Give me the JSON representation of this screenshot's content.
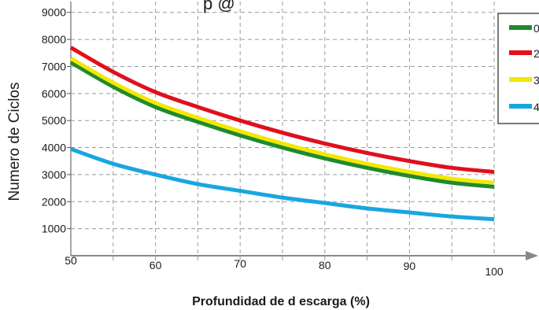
{
  "chart_data": {
    "type": "line",
    "title": "p @",
    "xlabel": "Profundidad de d escarga (%)",
    "ylabel": "Numero de Ciclos",
    "x_ticks": [
      "50",
      "60",
      "70",
      "80",
      "90",
      "100"
    ],
    "y_ticks": [
      "1000",
      "2000",
      "3000",
      "4000",
      "5000",
      "6000",
      "7000",
      "8000",
      "9000"
    ],
    "xlim": [
      50,
      100
    ],
    "ylim": [
      0,
      9400
    ],
    "grid": true,
    "legend_position": "top-right",
    "x": [
      50,
      55,
      60,
      65,
      70,
      75,
      80,
      85,
      90,
      95,
      100
    ],
    "series": [
      {
        "name": "0",
        "color": "#1f8a2e",
        "values": [
          7150,
          6250,
          5500,
          4950,
          4450,
          4000,
          3600,
          3250,
          2950,
          2700,
          2550
        ]
      },
      {
        "name": "2",
        "color": "#e0101c",
        "values": [
          7700,
          6800,
          6050,
          5500,
          5000,
          4550,
          4150,
          3800,
          3500,
          3250,
          3100
        ]
      },
      {
        "name": "3",
        "color": "#f2e800",
        "values": [
          7300,
          6400,
          5650,
          5100,
          4600,
          4150,
          3750,
          3400,
          3100,
          2850,
          2700
        ]
      },
      {
        "name": "4",
        "color": "#19a6e0",
        "values": [
          3950,
          3400,
          3000,
          2650,
          2400,
          2150,
          1950,
          1750,
          1600,
          1450,
          1350
        ]
      }
    ]
  }
}
